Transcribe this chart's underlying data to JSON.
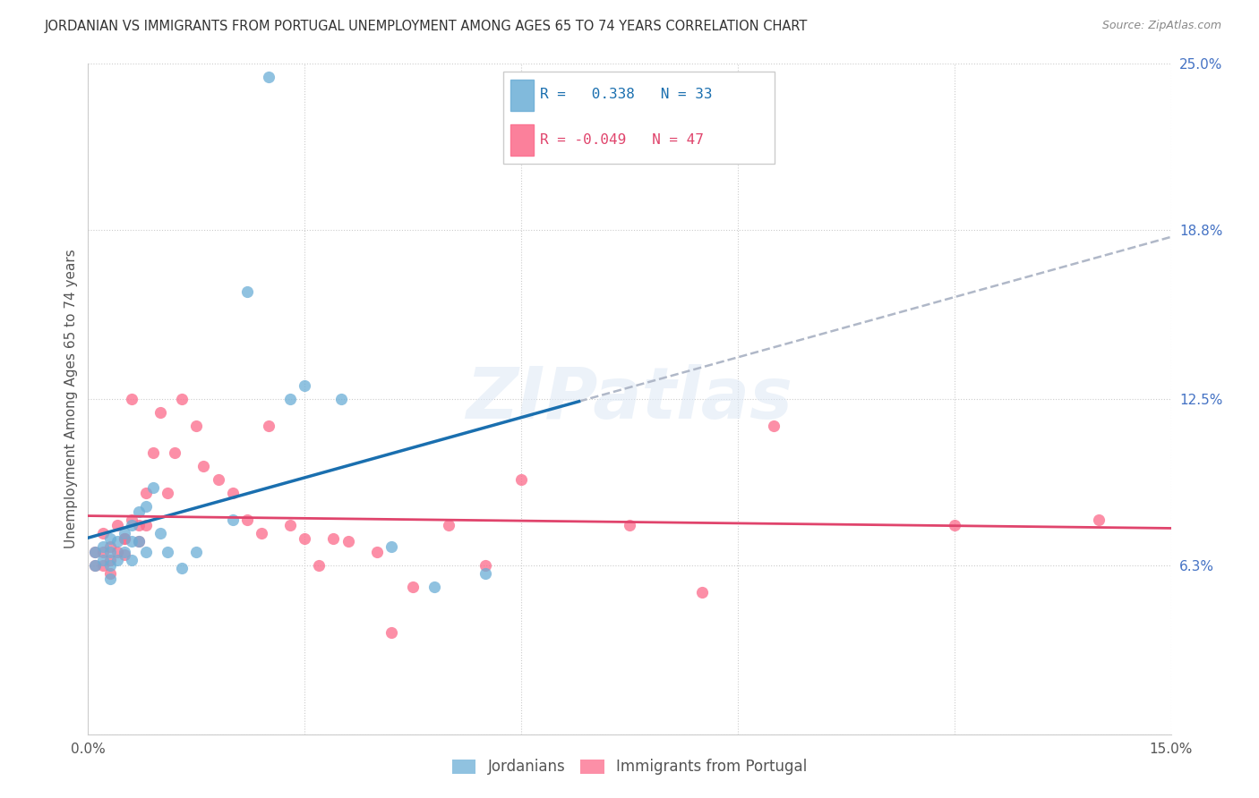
{
  "title": "JORDANIAN VS IMMIGRANTS FROM PORTUGAL UNEMPLOYMENT AMONG AGES 65 TO 74 YEARS CORRELATION CHART",
  "source": "Source: ZipAtlas.com",
  "ylabel": "Unemployment Among Ages 65 to 74 years",
  "xlim": [
    0.0,
    0.15
  ],
  "ylim": [
    0.0,
    0.25
  ],
  "xtick_vals": [
    0.0,
    0.03,
    0.06,
    0.09,
    0.12,
    0.15
  ],
  "xtick_labels": [
    "0.0%",
    "",
    "",
    "",
    "",
    "15.0%"
  ],
  "ytick_vals": [
    0.0,
    0.063,
    0.125,
    0.188,
    0.25
  ],
  "ytick_labels": [
    "",
    "6.3%",
    "12.5%",
    "18.8%",
    "25.0%"
  ],
  "r_jordan": 0.338,
  "n_jordan": 33,
  "r_portugal": -0.049,
  "n_portugal": 47,
  "color_jordan": "#6baed6",
  "color_portugal": "#fb6a8a",
  "line_jordan": "#1a6faf",
  "line_portugal": "#e0446c",
  "line_jordan_dash": "#b0b8c8",
  "watermark": "ZIPatlas",
  "jordan_x": [
    0.001,
    0.001,
    0.002,
    0.002,
    0.003,
    0.003,
    0.003,
    0.003,
    0.004,
    0.004,
    0.005,
    0.005,
    0.006,
    0.006,
    0.006,
    0.007,
    0.007,
    0.008,
    0.008,
    0.009,
    0.01,
    0.011,
    0.013,
    0.015,
    0.02,
    0.022,
    0.025,
    0.028,
    0.03,
    0.035,
    0.042,
    0.048,
    0.055
  ],
  "jordan_y": [
    0.068,
    0.063,
    0.07,
    0.065,
    0.073,
    0.068,
    0.063,
    0.058,
    0.072,
    0.065,
    0.075,
    0.068,
    0.078,
    0.072,
    0.065,
    0.083,
    0.072,
    0.085,
    0.068,
    0.092,
    0.075,
    0.068,
    0.062,
    0.068,
    0.08,
    0.165,
    0.245,
    0.125,
    0.13,
    0.125,
    0.07,
    0.055,
    0.06
  ],
  "portugal_x": [
    0.001,
    0.001,
    0.002,
    0.002,
    0.002,
    0.003,
    0.003,
    0.003,
    0.004,
    0.004,
    0.005,
    0.005,
    0.005,
    0.006,
    0.006,
    0.007,
    0.007,
    0.008,
    0.008,
    0.009,
    0.01,
    0.011,
    0.012,
    0.013,
    0.015,
    0.016,
    0.018,
    0.02,
    0.022,
    0.024,
    0.025,
    0.028,
    0.03,
    0.032,
    0.034,
    0.036,
    0.04,
    0.042,
    0.045,
    0.05,
    0.055,
    0.06,
    0.075,
    0.085,
    0.095,
    0.12,
    0.14
  ],
  "portugal_y": [
    0.068,
    0.063,
    0.068,
    0.063,
    0.075,
    0.07,
    0.065,
    0.06,
    0.078,
    0.068,
    0.073,
    0.067,
    0.073,
    0.125,
    0.08,
    0.078,
    0.072,
    0.09,
    0.078,
    0.105,
    0.12,
    0.09,
    0.105,
    0.125,
    0.115,
    0.1,
    0.095,
    0.09,
    0.08,
    0.075,
    0.115,
    0.078,
    0.073,
    0.063,
    0.073,
    0.072,
    0.068,
    0.038,
    0.055,
    0.078,
    0.063,
    0.095,
    0.078,
    0.053,
    0.115,
    0.078,
    0.08
  ]
}
